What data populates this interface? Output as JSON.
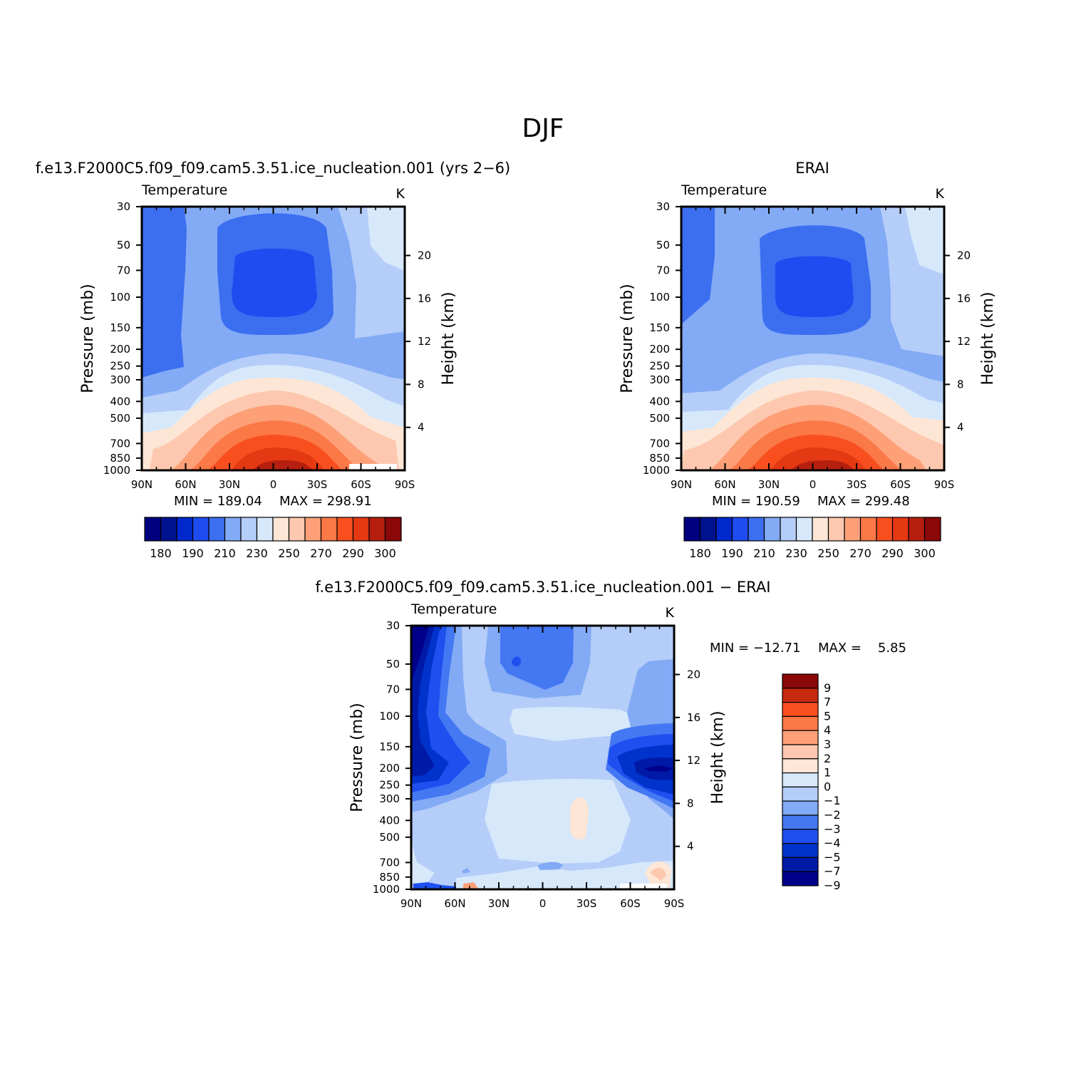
{
  "page": {
    "title": "DJF"
  },
  "colors": {
    "temp_levels": [
      "#00007f",
      "#00138f",
      "#0028cc",
      "#1e4cf0",
      "#3c6ef0",
      "#82aaf5",
      "#b4cdf9",
      "#d7e8fb",
      "#fde6d6",
      "#fdc8af",
      "#fda078",
      "#fb7847",
      "#f94f1f",
      "#e43913",
      "#b61f0f",
      "#8a0808"
    ],
    "diff_levels": [
      "#00008b",
      "#001aa8",
      "#0033cc",
      "#1e50f0",
      "#4477f2",
      "#82aaf5",
      "#b4cdf9",
      "#d7e8fb",
      "#fde6d6",
      "#fdc8af",
      "#fda078",
      "#fb7847",
      "#f94f1f",
      "#c82a0e",
      "#8a0808"
    ]
  },
  "chart_data": [
    {
      "id": "model",
      "type": "contour",
      "title": "f.e13.F2000C5.f09_f09.cam5.3.51.ice_nucleation.001 (yrs 2−6)",
      "left_label": "Temperature",
      "right_label": "K",
      "xlabel": "",
      "ylabel": "Pressure (mb)",
      "y2label": "Height (km)",
      "x_ticks": [
        "90N",
        "60N",
        "30N",
        "0",
        "30S",
        "60S",
        "90S"
      ],
      "y_ticks": [
        "30",
        "50",
        "70",
        "100",
        "150",
        "200",
        "250",
        "300",
        "400",
        "500",
        "700",
        "850",
        "1000"
      ],
      "y2_ticks": [
        "20",
        "16",
        "12",
        "8",
        "4"
      ],
      "min_label": "MIN = 189.04",
      "max_label": "MAX = 298.91",
      "min": 189.04,
      "max": 298.91,
      "colorbar_labels": [
        "180",
        "190",
        "210",
        "230",
        "250",
        "270",
        "290",
        "300"
      ],
      "units": "K"
    },
    {
      "id": "obs",
      "type": "contour",
      "title": "ERAI",
      "left_label": "Temperature",
      "right_label": "K",
      "xlabel": "",
      "ylabel": "Pressure (mb)",
      "y2label": "Height (km)",
      "x_ticks": [
        "90N",
        "60N",
        "30N",
        "0",
        "30S",
        "60S",
        "90S"
      ],
      "y_ticks": [
        "30",
        "50",
        "70",
        "100",
        "150",
        "200",
        "250",
        "300",
        "400",
        "500",
        "700",
        "850",
        "1000"
      ],
      "y2_ticks": [
        "20",
        "16",
        "12",
        "8",
        "4"
      ],
      "min_label": "MIN = 190.59",
      "max_label": "MAX = 299.48",
      "min": 190.59,
      "max": 299.48,
      "colorbar_labels": [
        "180",
        "190",
        "210",
        "230",
        "250",
        "270",
        "290",
        "300"
      ],
      "units": "K"
    },
    {
      "id": "diff",
      "type": "contour",
      "title": "f.e13.F2000C5.f09_f09.cam5.3.51.ice_nucleation.001 − ERAI",
      "left_label": "Temperature",
      "right_label": "K",
      "xlabel": "",
      "ylabel": "Pressure (mb)",
      "y2label": "Height (km)",
      "x_ticks": [
        "90N",
        "60N",
        "30N",
        "0",
        "30S",
        "60S",
        "90S"
      ],
      "y_ticks": [
        "30",
        "50",
        "70",
        "100",
        "150",
        "200",
        "250",
        "300",
        "400",
        "500",
        "700",
        "850",
        "1000"
      ],
      "y2_ticks": [
        "20",
        "16",
        "12",
        "8",
        "4"
      ],
      "min_label": "MIN = −12.71",
      "max_label": "MAX =    5.85",
      "min": -12.71,
      "max": 5.85,
      "colorbar_labels": [
        "9",
        "7",
        "5",
        "4",
        "3",
        "2",
        "1",
        "0",
        "−1",
        "−2",
        "−3",
        "−4",
        "−5",
        "−7",
        "−9"
      ],
      "units": "K"
    }
  ]
}
